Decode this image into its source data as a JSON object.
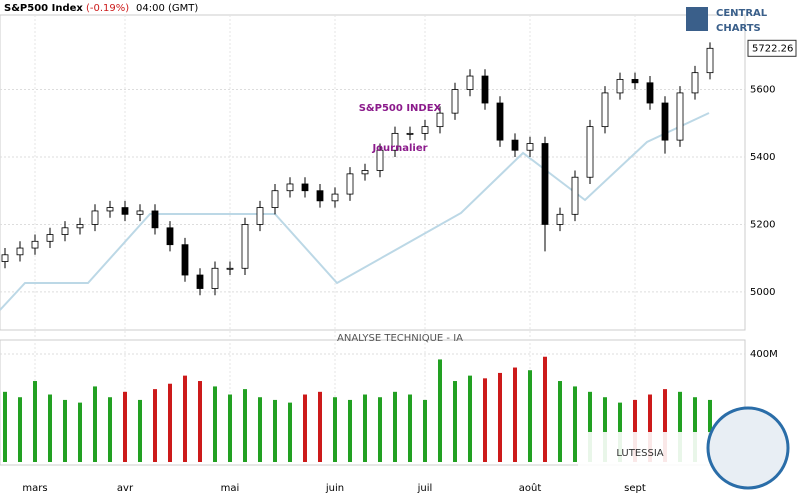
{
  "header": {
    "symbol": "S&P500 Index",
    "change": "(-0.19%)",
    "time": "04:00 (GMT)",
    "logo_top": "CENTRAL",
    "logo_bottom": "CHARTS"
  },
  "watermark": {
    "title": "S&P500 INDEX",
    "subtitle": "Journalier",
    "banner": "ANALYSE TECHNIQUE - IA",
    "brand": "LUTESSIA"
  },
  "chart_data": {
    "type": "candlestick",
    "categories": [
      null,
      null,
      "mars",
      null,
      null,
      null,
      null,
      null,
      "avr",
      null,
      null,
      null,
      null,
      null,
      null,
      "mai",
      null,
      null,
      null,
      null,
      null,
      null,
      "juin",
      null,
      null,
      null,
      null,
      null,
      "juil",
      null,
      null,
      null,
      null,
      null,
      null,
      "août",
      null,
      null,
      null,
      null,
      null,
      null,
      "sept",
      null,
      null,
      null,
      null,
      null
    ],
    "open": [
      5090,
      5110,
      5130,
      5150,
      5170,
      5190,
      5200,
      5240,
      5250,
      5230,
      5240,
      5190,
      5140,
      5050,
      5010,
      5070,
      5070,
      5200,
      5250,
      5300,
      5320,
      5300,
      5270,
      5290,
      5350,
      5360,
      5420,
      5470,
      5470,
      5490,
      5530,
      5600,
      5640,
      5560,
      5450,
      5420,
      5440,
      5200,
      5230,
      5340,
      5490,
      5590,
      5630,
      5620,
      5560,
      5450,
      5590,
      5650
    ],
    "high": [
      5130,
      5150,
      5170,
      5190,
      5210,
      5220,
      5260,
      5270,
      5270,
      5260,
      5260,
      5210,
      5160,
      5070,
      5090,
      5090,
      5220,
      5270,
      5320,
      5340,
      5340,
      5320,
      5310,
      5370,
      5380,
      5440,
      5490,
      5490,
      5510,
      5550,
      5620,
      5660,
      5660,
      5580,
      5470,
      5460,
      5460,
      5250,
      5360,
      5510,
      5610,
      5650,
      5650,
      5640,
      5580,
      5610,
      5670,
      5740
    ],
    "low": [
      5070,
      5090,
      5110,
      5130,
      5150,
      5170,
      5180,
      5220,
      5210,
      5210,
      5170,
      5120,
      5030,
      4990,
      4990,
      5050,
      5050,
      5180,
      5230,
      5280,
      5280,
      5250,
      5250,
      5270,
      5330,
      5340,
      5400,
      5450,
      5450,
      5470,
      5510,
      5580,
      5540,
      5430,
      5400,
      5400,
      5120,
      5180,
      5210,
      5320,
      5470,
      5570,
      5600,
      5540,
      5410,
      5430,
      5570,
      5630
    ],
    "close": [
      5110,
      5130,
      5150,
      5170,
      5190,
      5200,
      5240,
      5250,
      5230,
      5240,
      5190,
      5140,
      5050,
      5010,
      5070,
      5070,
      5200,
      5250,
      5300,
      5320,
      5300,
      5270,
      5290,
      5350,
      5360,
      5420,
      5470,
      5470,
      5490,
      5530,
      5600,
      5640,
      5560,
      5450,
      5420,
      5440,
      5200,
      5230,
      5340,
      5490,
      5590,
      5630,
      5620,
      5560,
      5450,
      5590,
      5650,
      5722.26
    ],
    "volume": [
      260,
      240,
      300,
      250,
      230,
      220,
      280,
      240,
      260,
      230,
      270,
      290,
      320,
      300,
      280,
      250,
      270,
      240,
      230,
      220,
      250,
      260,
      240,
      230,
      250,
      240,
      260,
      250,
      230,
      380,
      300,
      320,
      310,
      330,
      350,
      340,
      390,
      300,
      280,
      260,
      240,
      220,
      230,
      250,
      270,
      260,
      240,
      230
    ],
    "ylim": [
      4887,
      5821
    ],
    "yticks": [
      5000,
      5200,
      5400,
      5600
    ],
    "vlim": [
      0,
      452
    ],
    "vticks": [
      {
        "value": 400,
        "label": "400M"
      }
    ],
    "up_color": "#22a022",
    "down_color": "#cc1a1a",
    "grid": true
  }
}
